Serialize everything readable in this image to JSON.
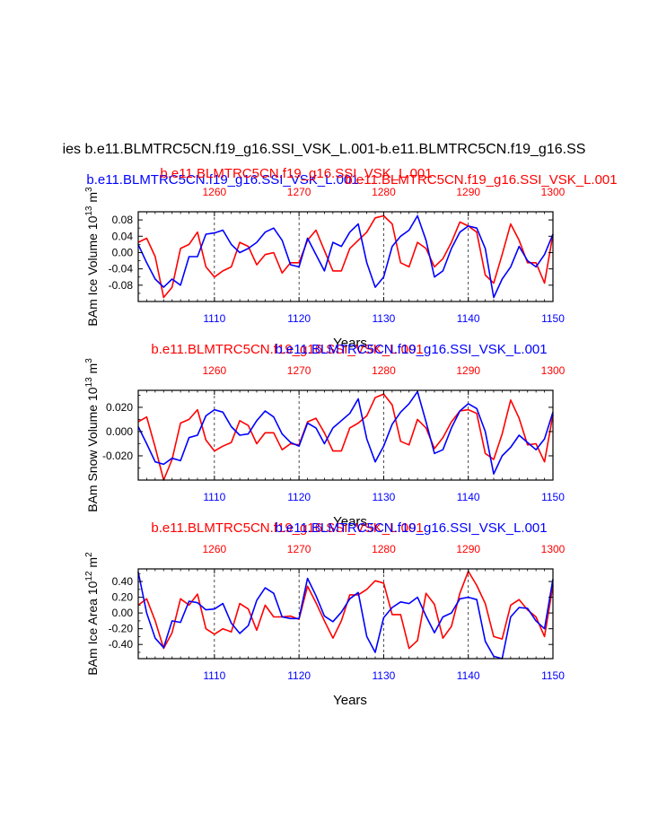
{
  "colors": {
    "red": "#ff0000",
    "blue": "#0000ff",
    "axis": "#000000",
    "grid": "#000000"
  },
  "main_title": "ies b.e11.BLMTRC5CN.f19_g16.SSI_VSK_L.001-b.e11.BLMTRC5CN.f19_g16.SS",
  "top_title_blue": "b.e11.BLMTRC5CN.f19_g16.SSI_VSK_L.001",
  "top_title_red": "b.e11.BLMTRC5CN.f19_g16.SSI_VSK_L.001",
  "top_title_overlap": "b.e11.BLMTRC5CN.f19_g16.SSI_VSK_L.001",
  "chart_data": [
    {
      "type": "line",
      "ylabel": "BAm Ice Volume 10^13 m^3",
      "ylabel_main": "BAm Ice Volume 10",
      "ylabel_exp": "13",
      "ylabel_unit": " m",
      "ylabel_unit_exp": "3",
      "xlabel": "Years",
      "title_red": "b.e11.BLMTRC5CN.f19_g16.SSI_VSK_L.001",
      "title_blue": "b.e11.BLMTRC5CN.f19_g16.SSI_VSK_L.001",
      "ylim": [
        -0.12,
        0.1
      ],
      "yticks": [
        0.08,
        0.04,
        0.0,
        -0.04,
        -0.08
      ],
      "ytick_labels": [
        "0.08",
        "0.04",
        "0.00",
        "-0.04",
        "-0.08"
      ],
      "bottom_xlim": [
        1101,
        1150
      ],
      "bottom_xticks": [
        "1110",
        "1120",
        "1130",
        "1140",
        "1150"
      ],
      "top_xlim": [
        1251,
        1300
      ],
      "top_xticks": [
        "1260",
        "1270",
        "1280",
        "1290",
        "1300"
      ],
      "x_start": 1101,
      "series": [
        {
          "name": "red",
          "color": "#ff0000",
          "values": [
            0.025,
            0.035,
            -0.01,
            -0.11,
            -0.085,
            0.01,
            0.02,
            0.05,
            -0.035,
            -0.06,
            -0.045,
            -0.035,
            0.025,
            0.015,
            -0.03,
            -0.005,
            0.0,
            -0.05,
            -0.025,
            -0.025,
            0.03,
            0.055,
            0.005,
            -0.045,
            -0.045,
            0.01,
            0.03,
            0.05,
            0.085,
            0.09,
            0.07,
            -0.025,
            -0.035,
            0.025,
            0.01,
            -0.035,
            -0.015,
            0.025,
            0.075,
            0.065,
            0.05,
            -0.055,
            -0.075,
            -0.005,
            0.07,
            0.03,
            -0.025,
            -0.025,
            -0.075,
            0.045
          ]
        },
        {
          "name": "blue",
          "color": "#0000ff",
          "values": [
            0.02,
            -0.025,
            -0.065,
            -0.085,
            -0.065,
            -0.08,
            -0.01,
            -0.01,
            0.045,
            0.048,
            0.055,
            0.02,
            0.0,
            0.01,
            0.025,
            0.05,
            0.06,
            0.03,
            -0.03,
            -0.035,
            0.035,
            -0.005,
            -0.045,
            0.025,
            0.015,
            0.05,
            0.07,
            -0.025,
            -0.085,
            -0.06,
            0.015,
            0.04,
            0.055,
            0.09,
            0.03,
            -0.06,
            -0.045,
            0.01,
            0.05,
            0.065,
            0.06,
            0.01,
            -0.11,
            -0.065,
            -0.035,
            0.015,
            -0.02,
            -0.035,
            -0.005,
            0.045
          ]
        }
      ]
    },
    {
      "type": "line",
      "ylabel": "BAm Snow Volume 10^13 m^3",
      "ylabel_main": "BAm Snow Volume 10",
      "ylabel_exp": "13",
      "ylabel_unit": " m",
      "ylabel_unit_exp": "3",
      "xlabel": "Years",
      "title_red": "b.e11.BLMTRC5CN.f19_g16.SSI_VSK_L.001",
      "title_blue": "b.e11.BLMTRC5CN.f19_g16.SSI_VSK_L.001",
      "ylim": [
        -0.04,
        0.034
      ],
      "yticks": [
        0.02,
        0.0,
        -0.02
      ],
      "ytick_labels": [
        "0.020",
        "0.000",
        "-0.020"
      ],
      "bottom_xlim": [
        1101,
        1150
      ],
      "bottom_xticks": [
        "1110",
        "1120",
        "1130",
        "1140",
        "1150"
      ],
      "top_xlim": [
        1251,
        1300
      ],
      "top_xticks": [
        "1260",
        "1270",
        "1280",
        "1290",
        "1300"
      ],
      "x_start": 1101,
      "series": [
        {
          "name": "red",
          "color": "#ff0000",
          "values": [
            0.008,
            0.012,
            -0.013,
            -0.04,
            -0.023,
            0.007,
            0.01,
            0.018,
            -0.007,
            -0.016,
            -0.012,
            -0.009,
            0.009,
            0.005,
            -0.01,
            -0.001,
            -0.001,
            -0.015,
            -0.01,
            -0.011,
            0.008,
            0.011,
            -0.001,
            -0.016,
            -0.016,
            0.003,
            0.007,
            0.013,
            0.028,
            0.031,
            0.022,
            -0.008,
            -0.011,
            0.01,
            0.003,
            -0.014,
            -0.005,
            0.008,
            0.017,
            0.018,
            0.015,
            -0.018,
            -0.023,
            -0.002,
            0.026,
            0.011,
            -0.011,
            -0.01,
            -0.025,
            0.014
          ]
        },
        {
          "name": "blue",
          "color": "#0000ff",
          "values": [
            0.004,
            -0.01,
            -0.025,
            -0.027,
            -0.022,
            -0.024,
            -0.005,
            -0.003,
            0.013,
            0.018,
            0.016,
            0.004,
            -0.003,
            -0.002,
            0.009,
            0.017,
            0.012,
            -0.002,
            -0.009,
            -0.012,
            0.007,
            0.003,
            -0.01,
            0.003,
            0.009,
            0.015,
            0.027,
            -0.006,
            -0.025,
            -0.012,
            0.006,
            0.016,
            0.023,
            0.033,
            0.008,
            -0.018,
            -0.015,
            0.003,
            0.017,
            0.023,
            0.019,
            0.0,
            -0.035,
            -0.02,
            -0.013,
            -0.003,
            -0.009,
            -0.015,
            -0.006,
            0.016
          ]
        }
      ]
    },
    {
      "type": "line",
      "ylabel": "BAm Ice Area 10^12 m^2",
      "ylabel_main": "BAm Ice Area 10",
      "ylabel_exp": "12",
      "ylabel_unit": " m",
      "ylabel_unit_exp": "2",
      "xlabel": "Years",
      "title_red": "b.e11.BLMTRC5CN.f19_g16.SSI_VSK_L.001",
      "title_blue": "b.e11.BLMTRC5CN.f19_g16.SSI_VSK_L.001",
      "ylim": [
        -0.58,
        0.56
      ],
      "yticks": [
        0.4,
        0.2,
        0.0,
        -0.2,
        -0.4
      ],
      "ytick_labels": [
        "0.40",
        "0.20",
        "0.00",
        "-0.20",
        "-0.40"
      ],
      "bottom_xlim": [
        1101,
        1150
      ],
      "bottom_xticks": [
        "1110",
        "1120",
        "1130",
        "1140",
        "1150"
      ],
      "top_xlim": [
        1251,
        1300
      ],
      "top_xticks": [
        "1260",
        "1270",
        "1280",
        "1290",
        "1300"
      ],
      "x_start": 1101,
      "series": [
        {
          "name": "red",
          "color": "#ff0000",
          "values": [
            0.1,
            0.18,
            -0.1,
            -0.45,
            -0.25,
            0.18,
            0.1,
            0.24,
            -0.2,
            -0.27,
            -0.2,
            -0.24,
            0.12,
            0.05,
            -0.22,
            0.1,
            -0.05,
            -0.05,
            -0.04,
            -0.08,
            0.34,
            0.13,
            -0.1,
            -0.32,
            -0.1,
            0.23,
            0.23,
            0.3,
            0.41,
            0.38,
            -0.02,
            -0.02,
            -0.45,
            -0.35,
            0.25,
            0.11,
            -0.32,
            -0.17,
            0.25,
            0.53,
            0.35,
            0.12,
            -0.3,
            -0.33,
            0.1,
            0.17,
            0.04,
            -0.05,
            -0.3,
            0.35
          ]
        },
        {
          "name": "blue",
          "color": "#0000ff",
          "values": [
            0.52,
            0.0,
            -0.32,
            -0.44,
            -0.1,
            -0.12,
            0.15,
            0.13,
            0.04,
            0.05,
            0.12,
            -0.13,
            -0.26,
            -0.16,
            0.16,
            0.32,
            0.25,
            -0.05,
            -0.07,
            -0.07,
            0.44,
            0.22,
            -0.04,
            -0.11,
            0.01,
            0.18,
            0.26,
            -0.3,
            -0.5,
            -0.06,
            0.07,
            0.14,
            0.12,
            0.2,
            -0.04,
            -0.25,
            -0.05,
            0.0,
            0.18,
            0.2,
            0.17,
            -0.36,
            -0.55,
            -0.58,
            -0.05,
            0.07,
            0.06,
            -0.1,
            -0.2,
            0.43
          ]
        }
      ]
    }
  ]
}
